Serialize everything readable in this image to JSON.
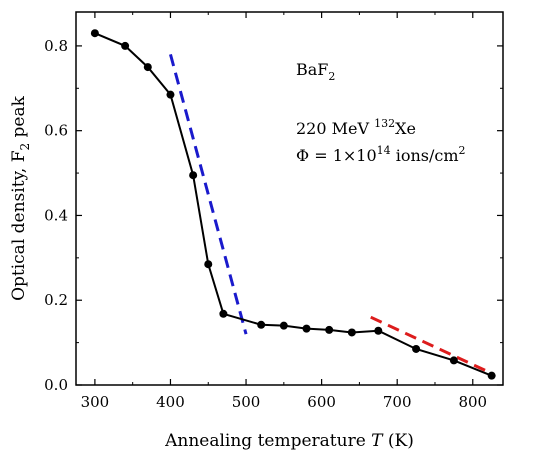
{
  "chart_data": {
    "type": "line",
    "xlabel_parts": [
      "Annealing temperature ",
      "T",
      " (K)"
    ],
    "ylabel_parts": [
      "Optical density, F",
      "2",
      " peak"
    ],
    "xlim": [
      275,
      840
    ],
    "ylim": [
      0.0,
      0.88
    ],
    "x_ticks": [
      300,
      400,
      500,
      600,
      700,
      800
    ],
    "y_ticks": [
      0.0,
      0.2,
      0.4,
      0.6,
      0.8
    ],
    "x_tick_labels": [
      "300",
      "400",
      "500",
      "600",
      "700",
      "800"
    ],
    "y_tick_labels": [
      "0.0",
      "0.2",
      "0.4",
      "0.6",
      "0.8"
    ],
    "grid": false,
    "series": [
      {
        "x": [
          300,
          340,
          370,
          400,
          430,
          450,
          470,
          520,
          550,
          580,
          610,
          640,
          675,
          725,
          775,
          825
        ],
        "y": [
          0.83,
          0.8,
          0.75,
          0.685,
          0.495,
          0.285,
          0.168,
          0.142,
          0.14,
          0.133,
          0.13,
          0.124,
          0.128,
          0.085,
          0.058,
          0.022
        ],
        "color": "#000000",
        "marker": "circle",
        "style": "solid"
      }
    ],
    "fit_lines": [
      {
        "x": [
          400,
          500
        ],
        "y": [
          0.78,
          0.12
        ],
        "color": "#1a1acc",
        "style": "dashed"
      },
      {
        "x": [
          665,
          828
        ],
        "y": [
          0.16,
          0.025
        ],
        "color": "#dd1c1c",
        "style": "dashed"
      }
    ],
    "annotations": {
      "material": {
        "base": "BaF",
        "sub": "2"
      },
      "beam": {
        "pre": "220 MeV ",
        "sup": "132",
        "post": "Xe"
      },
      "fluence": {
        "pre": "Φ = 1×10",
        "sup": "14",
        "mid": " ions/cm",
        "sup2": "2"
      }
    }
  }
}
